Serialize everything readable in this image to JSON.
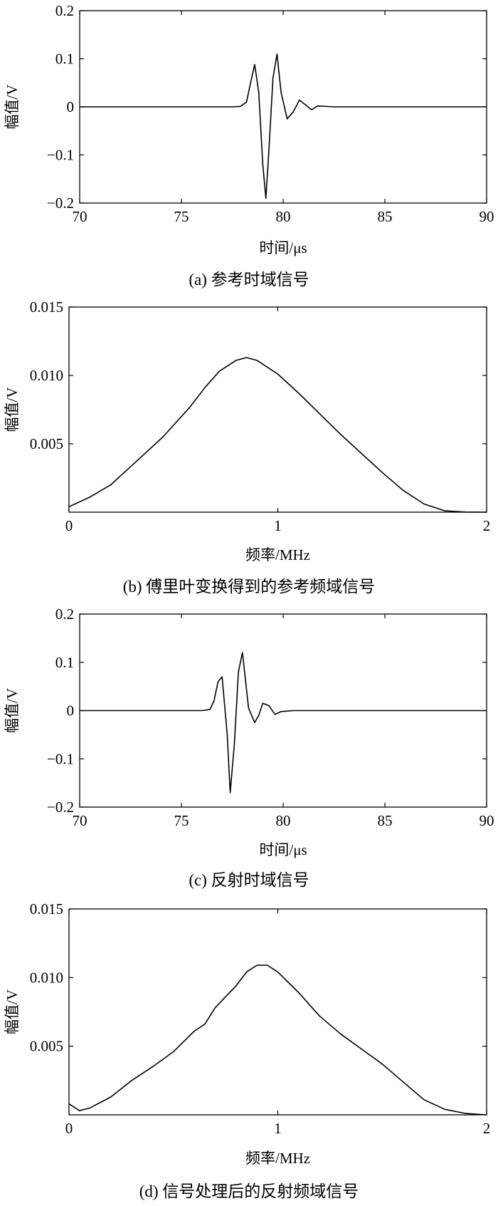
{
  "chart_data": [
    {
      "type": "line",
      "caption": "(a) 参考时域信号",
      "xlabel": "时间/μs",
      "ylabel": "幅值/V",
      "xlim": [
        70,
        90
      ],
      "ylim": [
        -0.2,
        0.2
      ],
      "xticks": [
        70,
        75,
        80,
        85,
        90
      ],
      "yticks": [
        0.2,
        0.1,
        0,
        -0.1,
        -0.2
      ],
      "ytick_labels": [
        "0.2",
        "0.1",
        "0",
        "−0.1",
        "−0.2"
      ],
      "grid": false,
      "series": [
        {
          "color": "#000000",
          "x": [
            70,
            77.5,
            77.9,
            78.2,
            78.4,
            78.6,
            78.8,
            79.0,
            79.15,
            79.3,
            79.5,
            79.7,
            79.9,
            80.2,
            80.5,
            80.8,
            81.1,
            81.4,
            81.7,
            82.5,
            86,
            90
          ],
          "y": [
            0,
            0,
            0.001,
            0.01,
            0.05,
            0.088,
            0.03,
            -0.12,
            -0.19,
            -0.09,
            0.06,
            0.11,
            0.03,
            -0.025,
            -0.01,
            0.014,
            0.004,
            -0.006,
            0.002,
            0,
            0,
            0
          ]
        }
      ]
    },
    {
      "type": "line",
      "caption": "(b) 傅里叶变换得到的参考频域信号",
      "xlabel": "频率/MHz",
      "ylabel": "幅值/V",
      "xlim": [
        0,
        2
      ],
      "ylim": [
        0,
        0.015
      ],
      "xticks": [
        0,
        1,
        2
      ],
      "xtick_labels": [
        "0",
        "1",
        "2"
      ],
      "yticks": [
        0.015,
        0.01,
        0.005
      ],
      "ytick_labels": [
        "0.015",
        "0.010",
        "0.005"
      ],
      "grid": false,
      "series": [
        {
          "color": "#000000",
          "x": [
            0,
            0.1,
            0.2,
            0.3,
            0.45,
            0.58,
            0.65,
            0.72,
            0.8,
            0.85,
            0.9,
            1.0,
            1.1,
            1.2,
            1.3,
            1.4,
            1.5,
            1.6,
            1.7,
            1.8,
            1.9,
            2.0
          ],
          "y": [
            0.0004,
            0.0011,
            0.002,
            0.0034,
            0.0055,
            0.0077,
            0.0091,
            0.0103,
            0.0111,
            0.0113,
            0.0111,
            0.0101,
            0.0087,
            0.0072,
            0.0057,
            0.0043,
            0.0029,
            0.0016,
            0.0006,
            0.0001,
            1e-05,
            0
          ]
        }
      ]
    },
    {
      "type": "line",
      "caption": "(c) 反射时域信号",
      "xlabel": "时间/μs",
      "ylabel": "幅值/V",
      "xlim": [
        70,
        90
      ],
      "ylim": [
        -0.2,
        0.2
      ],
      "xticks": [
        70,
        75,
        80,
        85,
        90
      ],
      "yticks": [
        0.2,
        0.1,
        0,
        -0.1,
        -0.2
      ],
      "ytick_labels": [
        "0.2",
        "0.1",
        "0",
        "−0.1",
        "−0.2"
      ],
      "grid": false,
      "series": [
        {
          "color": "#000000",
          "x": [
            70,
            76.0,
            76.4,
            76.6,
            76.8,
            77.0,
            77.25,
            77.4,
            77.6,
            77.8,
            78.0,
            78.3,
            78.6,
            78.8,
            79.0,
            79.3,
            79.6,
            79.9,
            80.5,
            86,
            90
          ],
          "y": [
            0,
            0,
            0.002,
            0.02,
            0.06,
            0.07,
            -0.05,
            -0.17,
            -0.07,
            0.08,
            0.12,
            0.005,
            -0.025,
            -0.01,
            0.015,
            0.01,
            -0.008,
            -0.002,
            0,
            0,
            0
          ]
        }
      ]
    },
    {
      "type": "line",
      "caption": "(d) 信号处理后的反射频域信号",
      "xlabel": "频率/MHz",
      "ylabel": "幅值/V",
      "xlim": [
        0,
        2
      ],
      "ylim": [
        0,
        0.015
      ],
      "xticks": [
        0,
        1,
        2
      ],
      "xtick_labels": [
        "0",
        "1",
        "2"
      ],
      "yticks": [
        0.015,
        0.01,
        0.005
      ],
      "ytick_labels": [
        "0.015",
        "0.010",
        "0.005"
      ],
      "grid": false,
      "series": [
        {
          "color": "#000000",
          "x": [
            0,
            0.05,
            0.1,
            0.2,
            0.3,
            0.4,
            0.5,
            0.6,
            0.65,
            0.7,
            0.8,
            0.85,
            0.9,
            0.95,
            1.0,
            1.1,
            1.2,
            1.3,
            1.4,
            1.5,
            1.6,
            1.7,
            1.8,
            1.9,
            2.0
          ],
          "y": [
            0.0008,
            0.0003,
            0.0005,
            0.0013,
            0.0025,
            0.0035,
            0.0046,
            0.0061,
            0.0066,
            0.0078,
            0.0094,
            0.0104,
            0.0109,
            0.0109,
            0.0104,
            0.0089,
            0.0072,
            0.0059,
            0.0048,
            0.0037,
            0.0024,
            0.0011,
            0.0004,
            0.0001,
            0
          ]
        }
      ]
    }
  ]
}
